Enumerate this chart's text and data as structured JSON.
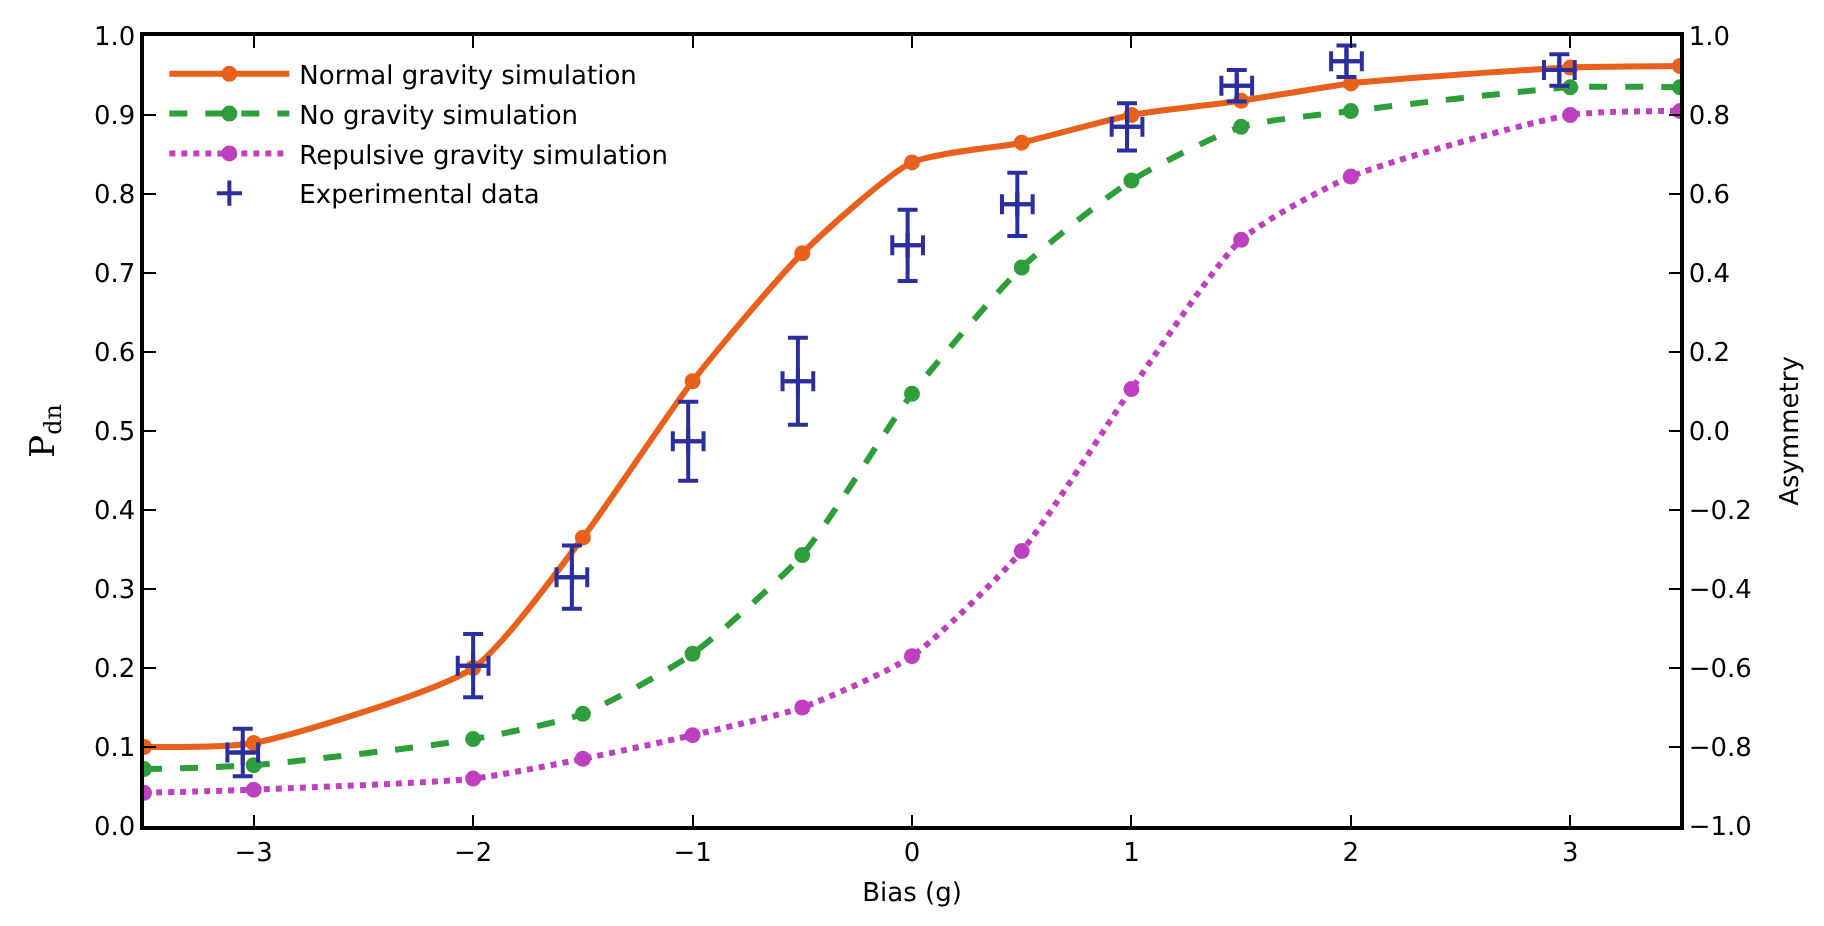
{
  "chart_data": {
    "type": "line",
    "xlabel": "Bias (g)",
    "ylabel": "P$_{dn}$",
    "y2label": "Asymmetry",
    "xlim": [
      -3.5,
      3.5
    ],
    "ylim": [
      0,
      1
    ],
    "y2lim": [
      -1,
      1
    ],
    "xticks": [
      {
        "value": -3,
        "label": "−3"
      },
      {
        "value": -2,
        "label": "−2"
      },
      {
        "value": -1,
        "label": "−1"
      },
      0,
      1,
      2,
      3
    ],
    "yticks": [
      {
        "value": 0,
        "label": "0.0"
      },
      0.1,
      0.2,
      0.3,
      0.4,
      0.5,
      0.6,
      0.7,
      0.8,
      0.9,
      {
        "value": 1,
        "label": "1.0"
      }
    ],
    "y2ticks": [
      {
        "value": -1,
        "label": "−1.0"
      },
      {
        "value": -0.8,
        "label": "−0.8"
      },
      {
        "value": -0.6,
        "label": "−0.6"
      },
      {
        "value": -0.4,
        "label": "−0.4"
      },
      {
        "value": -0.2,
        "label": "−0.2"
      },
      {
        "value": 0,
        "label": "0.0"
      },
      0.2,
      0.4,
      0.6,
      0.8,
      {
        "value": 1,
        "label": "1.0"
      }
    ],
    "legend": "top left",
    "marker": "circle",
    "series": [
      {
        "name": "Normal gravity simulation",
        "color": "#e8601c",
        "line_style": "solid",
        "x": [
          -3.5,
          -3,
          -2,
          -1.5,
          -1,
          -0.5,
          0,
          0.5,
          1,
          1.5,
          2,
          3,
          3.5
        ],
        "values": [
          0.1,
          0.105,
          0.2,
          0.365,
          0.563,
          0.725,
          0.84,
          0.865,
          0.9,
          0.918,
          0.94,
          0.96,
          0.962
        ]
      },
      {
        "name": "No gravity simulation",
        "color": "#2e9e3a",
        "line_style": "dashed",
        "x": [
          -3.5,
          -3,
          -2,
          -1.5,
          -1,
          -0.5,
          0,
          0.5,
          1,
          1.5,
          2,
          3,
          3.5
        ],
        "values": [
          0.072,
          0.077,
          0.11,
          0.142,
          0.218,
          0.343,
          0.547,
          0.707,
          0.817,
          0.885,
          0.905,
          0.935,
          0.935
        ]
      },
      {
        "name": "Repulsive gravity simulation",
        "color": "#bf40bf",
        "line_style": "dotted",
        "x": [
          -3.5,
          -3,
          -2,
          -1.5,
          -1,
          -0.5,
          0,
          0.5,
          1,
          1.5,
          2,
          3,
          3.5
        ],
        "values": [
          0.042,
          0.046,
          0.06,
          0.085,
          0.115,
          0.15,
          0.215,
          0.348,
          0.553,
          0.742,
          0.822,
          0.9,
          0.905
        ]
      },
      {
        "name": "Experimental data",
        "color": "#2b2f9e",
        "type": "scatter",
        "marker": "cross",
        "x": [
          -3.05,
          -2,
          -1.55,
          -1.02,
          -0.52,
          -0.02,
          0.48,
          0.98,
          1.48,
          1.98,
          2.95
        ],
        "values": [
          0.093,
          0.203,
          0.315,
          0.487,
          0.563,
          0.735,
          0.787,
          0.885,
          0.937,
          0.968,
          0.957
        ],
        "errors": [
          0.03,
          0.04,
          0.04,
          0.05,
          0.055,
          0.045,
          0.04,
          0.03,
          0.02,
          0.02,
          0.02
        ],
        "xerrors": [
          0.07,
          0.07,
          0.07,
          0.07,
          0.07,
          0.07,
          0.07,
          0.07,
          0.07,
          0.07,
          0.07
        ]
      }
    ]
  }
}
